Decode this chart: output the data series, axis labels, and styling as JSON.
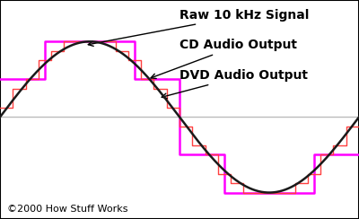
{
  "background_color": "#ffffff",
  "sine_color": "#1a1a1a",
  "cd_color": "#ff4040",
  "dvd_color": "#ff00ff",
  "centerline_color": "#bbbbbb",
  "annotation_fontsize": 10,
  "copyright_text": "©2000 How Stuff Works",
  "copyright_fontsize": 8,
  "label_raw": "Raw 10 kHz Signal",
  "label_cd": "CD Audio Output",
  "label_dvd": "DVD Audio Output",
  "xlim": [
    0,
    1
  ],
  "ylim": [
    -1.35,
    1.55
  ],
  "cd_steps_count": 28,
  "cd_levels": 8,
  "dvd_steps_count": 8,
  "dvd_levels": 4
}
